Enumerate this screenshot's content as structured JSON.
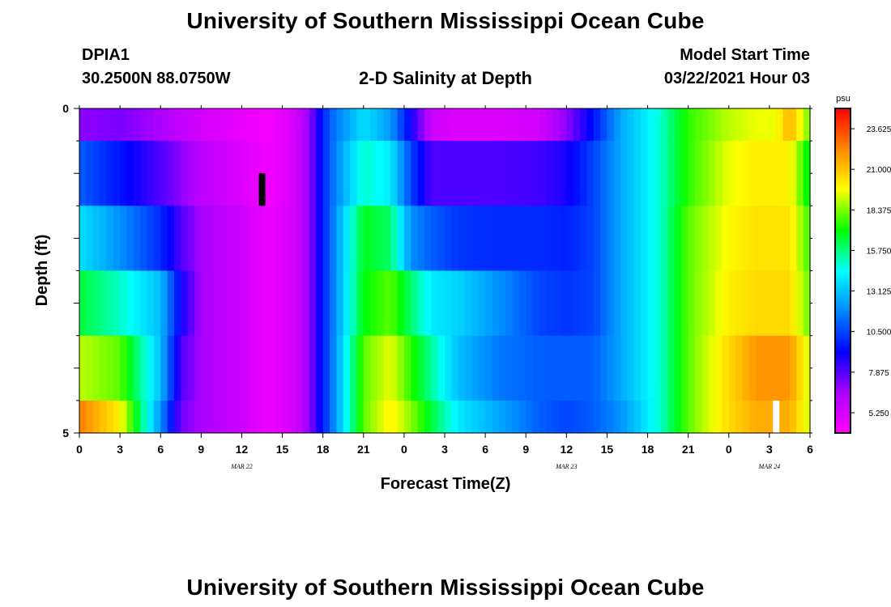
{
  "header": {
    "title_top": "University of Southern Mississippi Ocean Cube",
    "station_id": "DPIA1",
    "coordinates": "30.2500N 88.0750W",
    "plot_title": "2-D Salinity at Depth",
    "model_start_label": "Model Start Time",
    "model_start_value": "03/22/2021 Hour 03",
    "title_bottom": "University of Southern Mississippi Ocean Cube"
  },
  "chart_data": {
    "type": "heatmap",
    "title": "2-D Salinity at Depth",
    "xlabel": "Forecast Time(Z)",
    "ylabel": "Depth (ft)",
    "x_range_hours": [
      0,
      54
    ],
    "y_range_ft": [
      0,
      5
    ],
    "y_tick_labels": [
      "0",
      "5"
    ],
    "x_tick_labels": [
      "0",
      "3",
      "6",
      "9",
      "12",
      "15",
      "18",
      "21",
      "0",
      "3",
      "6",
      "9",
      "12",
      "15",
      "18",
      "21",
      "0",
      "3",
      "6"
    ],
    "date_labels": [
      {
        "text": "MAR 22",
        "hour": 12
      },
      {
        "text": "MAR 23",
        "hour": 36
      },
      {
        "text": "MAR 24",
        "hour": 51
      }
    ],
    "colorbar": {
      "unit": "psu",
      "min": 3.9375,
      "max": 24.9375,
      "tick_labels": [
        "23.625",
        "21.000",
        "18.375",
        "15.750",
        "13.125",
        "10.500",
        "7.875",
        "5.250"
      ],
      "tick_values": [
        23.625,
        21.0,
        18.375,
        15.75,
        13.125,
        10.5,
        7.875,
        5.25
      ],
      "colors": [
        "#ff00ff",
        "#aa00ff",
        "#0000ff",
        "#0088ff",
        "#00ffff",
        "#00ff00",
        "#ffff00",
        "#ff8800",
        "#ff0000"
      ]
    },
    "depth_layers_ft": [
      [
        0.0,
        0.5
      ],
      [
        0.5,
        1.5
      ],
      [
        1.5,
        2.5
      ],
      [
        2.5,
        3.5
      ],
      [
        3.5,
        4.5
      ],
      [
        4.5,
        5.0
      ]
    ],
    "time_keys_hours": [
      0,
      3,
      6,
      7.5,
      9,
      12,
      14,
      16,
      17,
      18.5,
      21,
      23,
      24.5,
      26,
      28,
      31,
      34,
      36,
      38,
      40,
      43,
      45,
      48,
      50,
      51.5,
      52.5,
      54
    ],
    "salinity_psu": [
      [
        7.0,
        7.3,
        6.5,
        5.8,
        5.3,
        4.6,
        4.2,
        5.2,
        7.0,
        11.0,
        13.8,
        12.2,
        9.0,
        5.5,
        5.0,
        5.0,
        5.4,
        7.0,
        9.5,
        12.5,
        15.0,
        17.5,
        19.0,
        19.5,
        19.5,
        21.5,
        18.0
      ],
      [
        11.0,
        9.5,
        8.0,
        7.0,
        6.0,
        5.0,
        4.3,
        5.3,
        7.0,
        11.0,
        15.0,
        14.0,
        10.5,
        8.0,
        8.0,
        8.0,
        8.2,
        8.8,
        10.5,
        12.5,
        15.0,
        17.5,
        19.5,
        20.0,
        20.0,
        20.0,
        16.5
      ],
      [
        13.8,
        12.0,
        10.0,
        8.0,
        6.5,
        5.5,
        4.5,
        5.3,
        7.0,
        11.0,
        16.8,
        16.0,
        12.0,
        11.0,
        10.2,
        10.0,
        10.0,
        9.8,
        10.5,
        12.5,
        15.0,
        18.0,
        19.8,
        20.3,
        20.3,
        20.3,
        17.5
      ],
      [
        16.5,
        15.0,
        13.0,
        9.0,
        6.5,
        5.5,
        4.5,
        5.3,
        7.0,
        11.0,
        17.0,
        18.0,
        16.0,
        14.0,
        13.5,
        12.0,
        10.5,
        10.2,
        10.5,
        12.5,
        15.0,
        18.0,
        20.0,
        20.5,
        20.5,
        20.5,
        18.0
      ],
      [
        19.0,
        18.0,
        13.0,
        8.0,
        6.5,
        5.5,
        4.5,
        5.3,
        7.0,
        11.0,
        18.0,
        19.5,
        17.5,
        15.5,
        13.0,
        11.5,
        11.0,
        11.0,
        11.0,
        12.5,
        15.0,
        18.0,
        20.5,
        22.0,
        22.0,
        22.0,
        19.0
      ],
      [
        22.5,
        20.0,
        12.0,
        7.5,
        6.5,
        5.5,
        4.5,
        5.3,
        7.0,
        11.0,
        18.0,
        20.0,
        18.5,
        16.5,
        14.0,
        12.5,
        11.0,
        10.5,
        11.0,
        12.0,
        15.0,
        18.0,
        20.5,
        21.5,
        21.5,
        21.5,
        19.0
      ]
    ],
    "markers": [
      {
        "name": "observation-bar-black",
        "hour": 13.5,
        "depth_from": 1.0,
        "depth_to": 1.5,
        "color": "#000000"
      },
      {
        "name": "observation-bar-white",
        "hour": 51.5,
        "depth_from": 4.5,
        "depth_to": 5.0,
        "color": "#ffffff"
      }
    ]
  }
}
